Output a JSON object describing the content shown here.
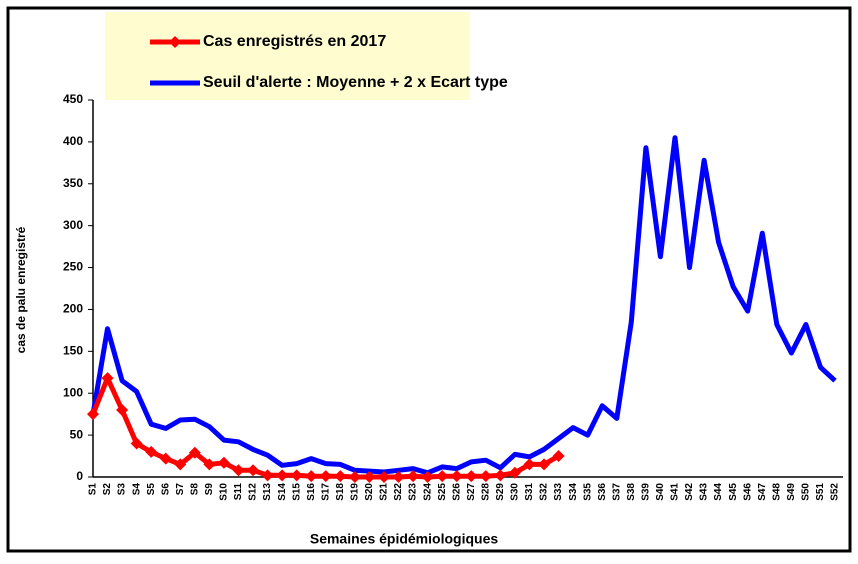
{
  "chart_data": {
    "type": "line",
    "categories": [
      "S1",
      "S2",
      "S3",
      "S4",
      "S5",
      "S6",
      "S7",
      "S8",
      "S9",
      "S10",
      "S11",
      "S12",
      "S13",
      "S14",
      "S15",
      "S16",
      "S17",
      "S18",
      "S19",
      "S20",
      "S21",
      "S22",
      "S23",
      "S24",
      "S25",
      "S26",
      "S27",
      "S28",
      "S29",
      "S30",
      "S31",
      "S32",
      "S33",
      "S34",
      "S35",
      "S36",
      "S37",
      "S38",
      "S39",
      "S40",
      "S41",
      "S42",
      "S43",
      "S44",
      "S45",
      "S46",
      "S47",
      "S48",
      "S49",
      "S50",
      "S51",
      "S52"
    ],
    "series": [
      {
        "name": "Cas enregistrés en 2017",
        "color": "#ff0000",
        "marker": "diamond",
        "values": [
          75,
          118,
          80,
          40,
          30,
          22,
          15,
          29,
          15,
          17,
          8,
          8,
          2,
          2,
          2,
          1,
          1,
          1,
          0,
          0,
          0,
          0,
          1,
          0,
          1,
          1,
          1,
          1,
          2,
          5,
          15,
          15,
          25,
          null,
          null,
          null,
          null,
          null,
          null,
          null,
          null,
          null,
          null,
          null,
          null,
          null,
          null,
          null,
          null,
          null,
          null,
          null
        ]
      },
      {
        "name": "Seuil d'alerte : Moyenne + 2 x Ecart type",
        "color": "#0000ff",
        "values": [
          75,
          177,
          115,
          102,
          63,
          58,
          68,
          69,
          60,
          44,
          42,
          33,
          26,
          14,
          16,
          22,
          16,
          15,
          8,
          7,
          6,
          8,
          10,
          5,
          12,
          10,
          18,
          20,
          11,
          27,
          24,
          33,
          46,
          59,
          50,
          85,
          70,
          185,
          393,
          263,
          405,
          250,
          378,
          280,
          227,
          198,
          291,
          182,
          148,
          182,
          131,
          115
        ]
      }
    ],
    "y_label": "cas de palu enregistré",
    "x_label": "Semaines épidémiologiques",
    "ylim": [
      0,
      450
    ],
    "yticks": [
      0,
      50,
      100,
      150,
      200,
      250,
      300,
      350,
      400,
      450
    ]
  }
}
